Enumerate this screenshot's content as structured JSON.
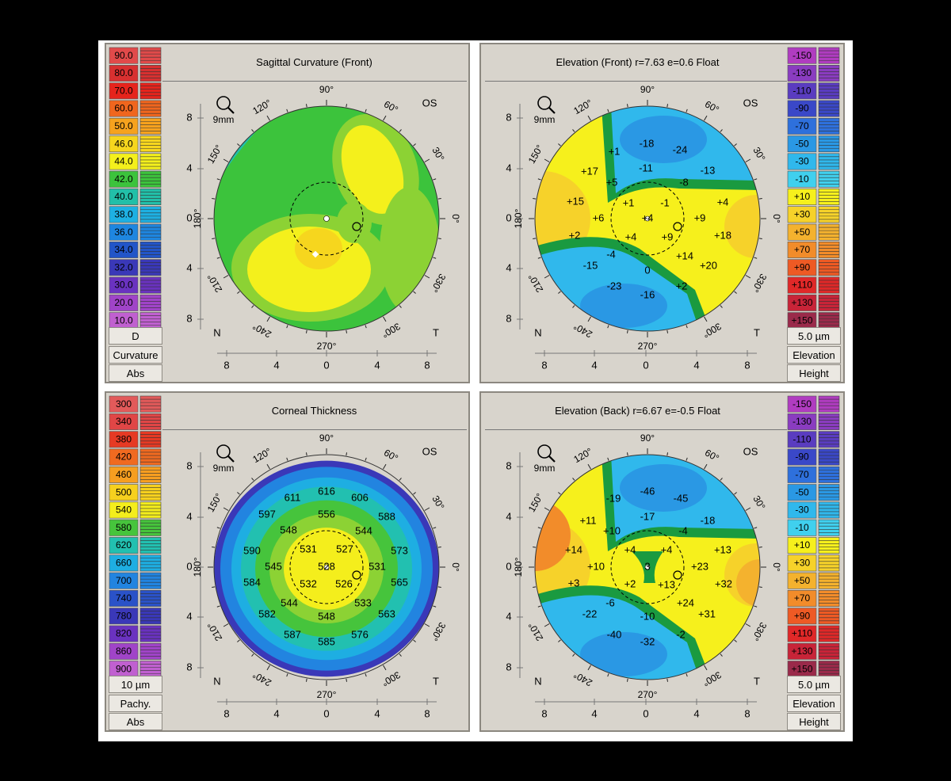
{
  "panels": [
    {
      "id": "sagittal",
      "title": "Sagittal Curvature (Front)",
      "eye": "OS",
      "zoom_label": "9mm",
      "nt_labels": [
        "N",
        "T"
      ],
      "legend_side": "left",
      "legend": {
        "values": [
          "90.0",
          "80.0",
          "70.0",
          "60.0",
          "50.0",
          "46.0",
          "44.0",
          "42.0",
          "40.0",
          "38.0",
          "36.0",
          "34.0",
          "32.0",
          "30.0",
          "20.0",
          "10.0"
        ],
        "colors": [
          "#e14a4a",
          "#d83030",
          "#e6241c",
          "#f0661e",
          "#f6a21e",
          "#f6d61e",
          "#f4f01c",
          "#3cc33c",
          "#22bfa8",
          "#1eb0e2",
          "#1e86e0",
          "#2255c8",
          "#3a38b8",
          "#6a32c0",
          "#a044c8",
          "#c060d0"
        ],
        "footer": [
          "D",
          "Curvature",
          "Abs"
        ]
      },
      "annotations": []
    },
    {
      "id": "elev-front",
      "title": "Elevation (Front)  r=7.63 e=0.6 Float",
      "eye": "OS",
      "zoom_label": "9mm",
      "nt_labels": [
        "N",
        "T"
      ],
      "legend_side": "right",
      "legend": {
        "values": [
          "-150",
          "-130",
          "-110",
          "-90",
          "-70",
          "-50",
          "-30",
          "-10",
          "+10",
          "+30",
          "+50",
          "+70",
          "+90",
          "+110",
          "+130",
          "+150"
        ],
        "colors": [
          "#b03cc0",
          "#8a3cc0",
          "#5a3cc0",
          "#3a48c8",
          "#2e70dc",
          "#2a98e4",
          "#30b8ec",
          "#40d0ee",
          "#f6f01c",
          "#f6d22a",
          "#f4b22e",
          "#f28c2a",
          "#ee5a24",
          "#e02828",
          "#c82438",
          "#9a2a4a"
        ],
        "footer": [
          "5.0 µm",
          "Elevation",
          "Height"
        ]
      },
      "annotations": [
        "-18",
        "-24",
        "+1",
        "-11",
        "-13",
        "+17",
        "+5",
        "-8",
        "+15",
        "+1",
        "-1",
        "+4",
        "+6",
        "+4",
        "+9",
        "+2",
        "+4",
        "+9",
        "+18",
        "-4",
        "+14",
        "-15",
        "0",
        "+20",
        "-23",
        "+2",
        "-16"
      ]
    },
    {
      "id": "thickness",
      "title": "Corneal Thickness",
      "eye": "OS",
      "zoom_label": "9mm",
      "nt_labels": [
        "N",
        "T"
      ],
      "legend_side": "left",
      "legend": {
        "values": [
          "300",
          "340",
          "380",
          "420",
          "460",
          "500",
          "540",
          "580",
          "620",
          "660",
          "700",
          "740",
          "780",
          "820",
          "860",
          "900"
        ],
        "colors": [
          "#e25a5a",
          "#e04646",
          "#e63a24",
          "#f06a20",
          "#f69e20",
          "#f6d01e",
          "#f4ee1c",
          "#46c43c",
          "#22c0b0",
          "#1eaee2",
          "#2284e0",
          "#2a52c8",
          "#3a38b8",
          "#6a32c0",
          "#a044c8",
          "#c060d0"
        ],
        "footer": [
          "10 µm",
          "Pachy.",
          "Abs"
        ]
      },
      "annotations": [
        "616",
        "611",
        "606",
        "597",
        "556",
        "588",
        "548",
        "544",
        "531",
        "527",
        "590",
        "573",
        "545",
        "528",
        "531",
        "584",
        "532",
        "526",
        "565",
        "544",
        "533",
        "582",
        "548",
        "563",
        "587",
        "585",
        "576"
      ]
    },
    {
      "id": "elev-back",
      "title": "Elevation (Back)  r=6.67 e=-0.5 Float",
      "eye": "OS",
      "zoom_label": "9mm",
      "nt_labels": [
        "N",
        "T"
      ],
      "legend_side": "right",
      "legend": {
        "values": [
          "-150",
          "-130",
          "-110",
          "-90",
          "-70",
          "-50",
          "-30",
          "-10",
          "+10",
          "+30",
          "+50",
          "+70",
          "+90",
          "+110",
          "+130",
          "+150"
        ],
        "colors": [
          "#b03cc0",
          "#8a3cc0",
          "#5a3cc0",
          "#3a48c8",
          "#2e70dc",
          "#2a98e4",
          "#30b8ec",
          "#40d0ee",
          "#f6f01c",
          "#f6d22a",
          "#f4b22e",
          "#f28c2a",
          "#ee5a24",
          "#e02828",
          "#c82438",
          "#9a2a4a"
        ],
        "footer": [
          "5.0 µm",
          "Elevation",
          "Height"
        ]
      },
      "annotations": [
        "-46",
        "-19",
        "-45",
        "-17",
        "+11",
        "-18",
        "+10",
        "-4",
        "+14",
        "+4",
        "+4",
        "+13",
        "+10",
        "3",
        "+23",
        "+13",
        "+32",
        "+3",
        "+2",
        "-6",
        "+24",
        "-22",
        "-10",
        "+31",
        "-40",
        "-2",
        "-32"
      ]
    }
  ],
  "axis": {
    "y_ticks": [
      "8",
      "4",
      "0",
      "4",
      "8"
    ],
    "x_ticks": [
      "8",
      "4",
      "0",
      "4",
      "8"
    ],
    "angles": [
      "90°",
      "60°",
      "30°",
      "0°",
      "330°",
      "300°",
      "270°",
      "240°",
      "210°",
      "180°",
      "150°",
      "120°"
    ]
  }
}
